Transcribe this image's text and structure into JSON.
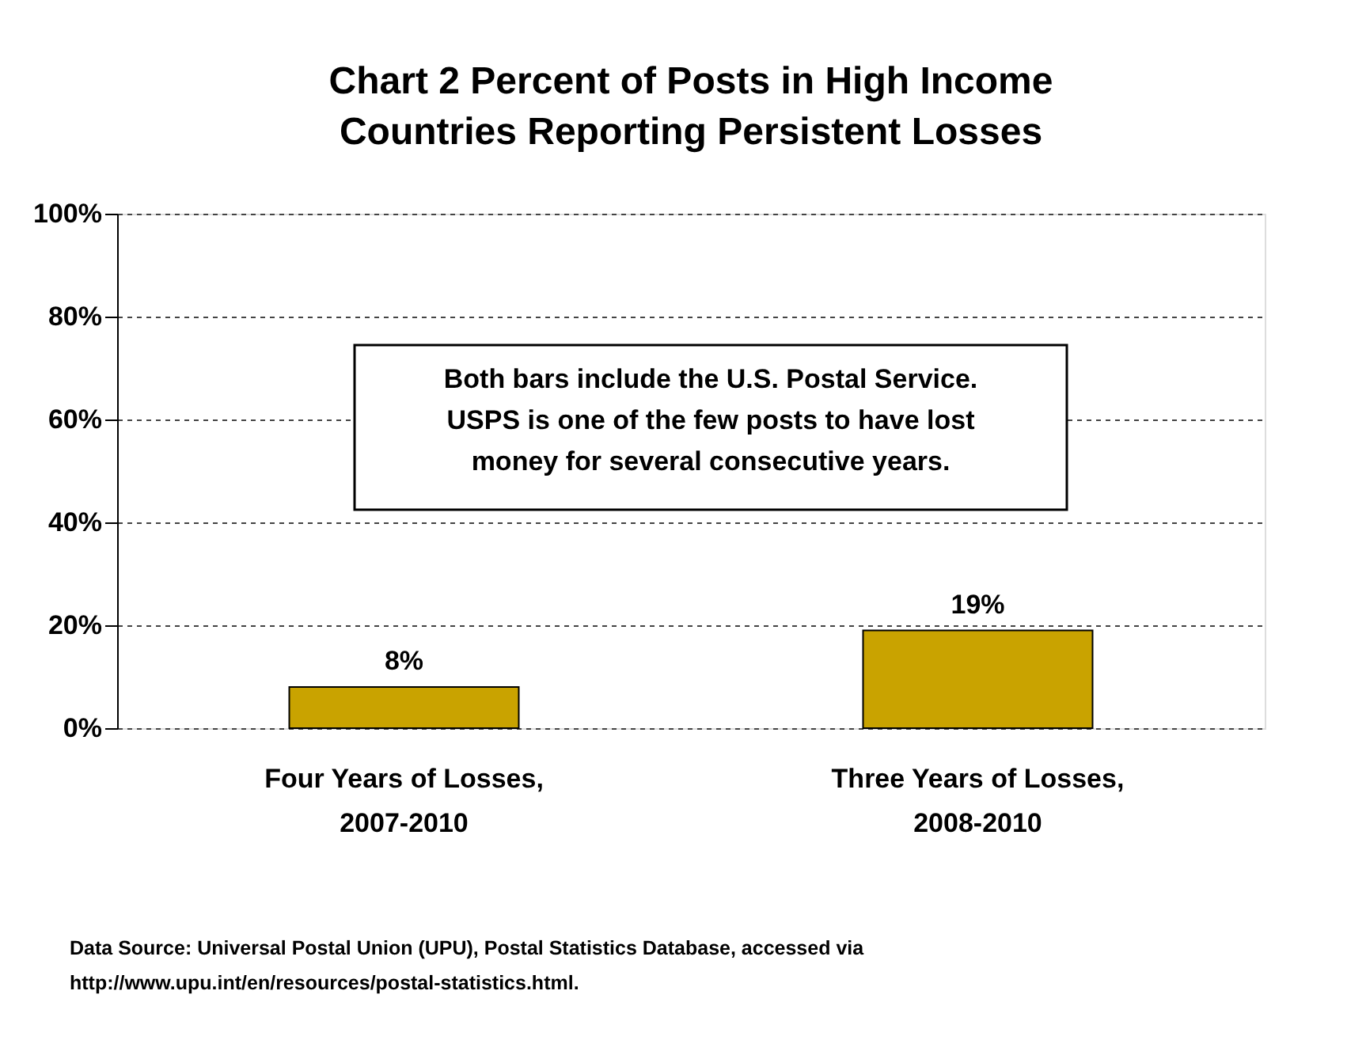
{
  "chart_data": {
    "type": "bar",
    "title": [
      "Chart 2     Percent of Posts in High Income",
      "Countries Reporting Persistent Losses"
    ],
    "categories": [
      "Four Years of Losses, 2007-2010",
      "Three Years of Losses, 2008-2010"
    ],
    "values": [
      8,
      19
    ],
    "color": "#c9a300",
    "data_labels": true,
    "value_labels": [
      "8%",
      "19%"
    ],
    "ylim": [
      0,
      100
    ],
    "yticks": [
      {
        "value": 0,
        "label": "0%"
      },
      {
        "value": 20,
        "label": "20%"
      },
      {
        "value": 40,
        "label": "40%"
      },
      {
        "value": 60,
        "label": "60%"
      },
      {
        "value": 80,
        "label": "80%"
      },
      {
        "value": 100,
        "label": "100%"
      }
    ],
    "grid": "y",
    "line_style": "dashed",
    "annotations": [
      "Both bars include the U.S. Postal Service. USPS is one of the few posts to have lost money for several consecutive years.",
      "Data Source: Universal Postal Union (UPU), Postal Statistics Database, accessed via http://www.upu.int/en/resources/postal-statistics.html."
    ]
  }
}
